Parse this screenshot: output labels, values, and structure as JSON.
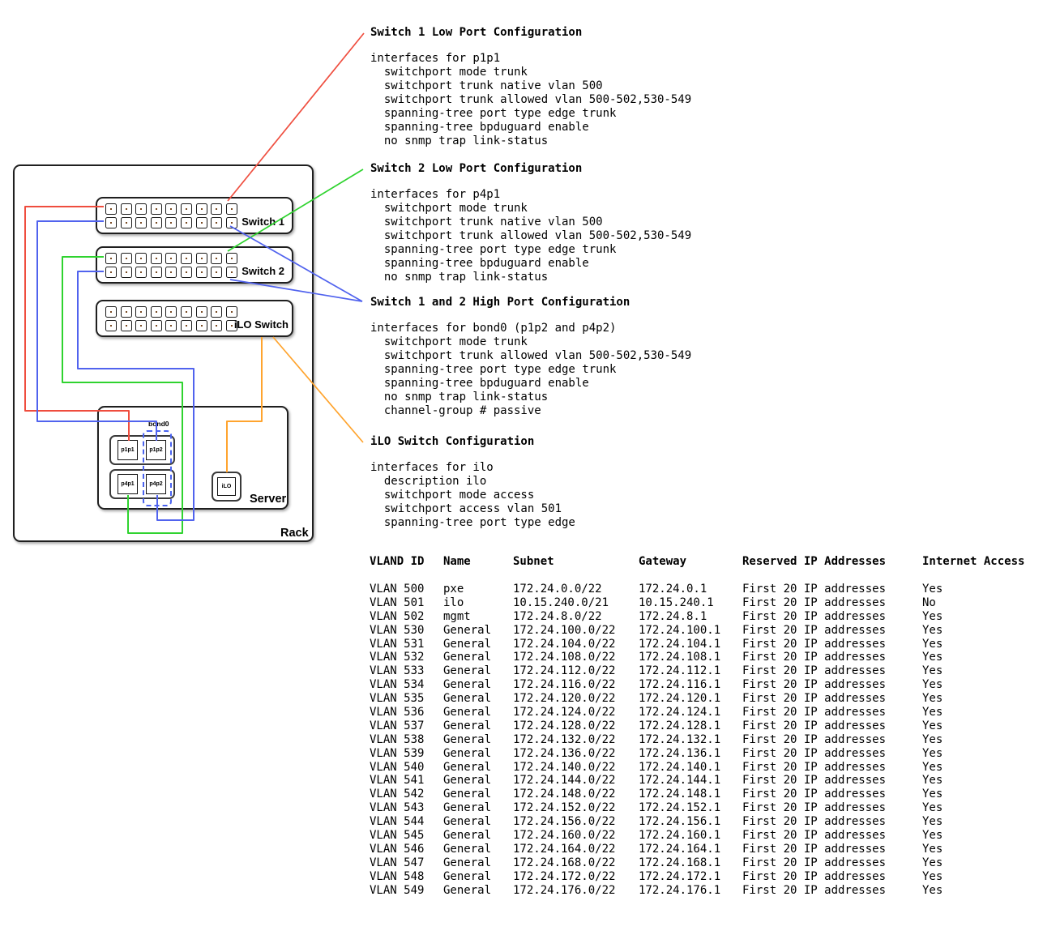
{
  "colors": {
    "wire_red": "#ef4d3e",
    "wire_green": "#2fd32f",
    "wire_blue": "#5163ee",
    "wire_orange": "#ffa42e"
  },
  "diagram": {
    "rack_label": "Rack",
    "server_label": "Server",
    "bond_label": "bond0",
    "switch1": {
      "label": "Switch 1",
      "ports_per_row": 9
    },
    "switch2": {
      "label": "Switch 2",
      "ports_per_row": 9
    },
    "ilo_switch": {
      "label": "iLO Switch",
      "ports_per_row": 9
    },
    "nics": {
      "p1p1": "p1p1",
      "p1p2": "p1p2",
      "p4p1": "p4p1",
      "p4p2": "p4p2",
      "ilo": "iLO"
    }
  },
  "config_blocks": [
    {
      "title": "Switch 1 Low Port Configuration",
      "body": "interfaces for p1p1\n  switchport mode trunk\n  switchport trunk native vlan 500\n  switchport trunk allowed vlan 500-502,530-549\n  spanning-tree port type edge trunk\n  spanning-tree bpduguard enable\n  no snmp trap link-status"
    },
    {
      "title": "Switch 2 Low Port Configuration",
      "body": "interfaces for p4p1\n  switchport mode trunk\n  switchport trunk native vlan 500\n  switchport trunk allowed vlan 500-502,530-549\n  spanning-tree port type edge trunk\n  spanning-tree bpduguard enable\n  no snmp trap link-status"
    },
    {
      "title": "Switch 1 and 2 High Port Configuration",
      "body": "interfaces for bond0 (p1p2 and p4p2)\n  switchport mode trunk\n  switchport trunk allowed vlan 500-502,530-549\n  spanning-tree port type edge trunk\n  spanning-tree bpduguard enable\n  no snmp trap link-status\n  channel-group # passive"
    },
    {
      "title": "iLO Switch Configuration",
      "body": "interfaces for ilo\n  description ilo\n  switchport mode access\n  switchport access vlan 501\n  spanning-tree port type edge"
    }
  ],
  "vlan_table": {
    "headers": [
      "VLAND ID",
      "Name",
      "Subnet",
      "Gateway",
      "Reserved IP Addresses",
      "Internet Access"
    ],
    "rows": [
      [
        "VLAN 500",
        "pxe",
        "172.24.0.0/22",
        "172.24.0.1",
        "First 20 IP addresses",
        "Yes"
      ],
      [
        "VLAN 501",
        "ilo",
        "10.15.240.0/21",
        "10.15.240.1",
        "First 20 IP addresses",
        "No"
      ],
      [
        "VLAN 502",
        "mgmt",
        "172.24.8.0/22",
        "172.24.8.1",
        "First 20 IP addresses",
        "Yes"
      ],
      [
        "VLAN 530",
        "General",
        "172.24.100.0/22",
        "172.24.100.1",
        "First 20 IP addresses",
        "Yes"
      ],
      [
        "VLAN 531",
        "General",
        "172.24.104.0/22",
        "172.24.104.1",
        "First 20 IP addresses",
        "Yes"
      ],
      [
        "VLAN 532",
        "General",
        "172.24.108.0/22",
        "172.24.108.1",
        "First 20 IP addresses",
        "Yes"
      ],
      [
        "VLAN 533",
        "General",
        "172.24.112.0/22",
        "172.24.112.1",
        "First 20 IP addresses",
        "Yes"
      ],
      [
        "VLAN 534",
        "General",
        "172.24.116.0/22",
        "172.24.116.1",
        "First 20 IP addresses",
        "Yes"
      ],
      [
        "VLAN 535",
        "General",
        "172.24.120.0/22",
        "172.24.120.1",
        "First 20 IP addresses",
        "Yes"
      ],
      [
        "VLAN 536",
        "General",
        "172.24.124.0/22",
        "172.24.124.1",
        "First 20 IP addresses",
        "Yes"
      ],
      [
        "VLAN 537",
        "General",
        "172.24.128.0/22",
        "172.24.128.1",
        "First 20 IP addresses",
        "Yes"
      ],
      [
        "VLAN 538",
        "General",
        "172.24.132.0/22",
        "172.24.132.1",
        "First 20 IP addresses",
        "Yes"
      ],
      [
        "VLAN 539",
        "General",
        "172.24.136.0/22",
        "172.24.136.1",
        "First 20 IP addresses",
        "Yes"
      ],
      [
        "VLAN 540",
        "General",
        "172.24.140.0/22",
        "172.24.140.1",
        "First 20 IP addresses",
        "Yes"
      ],
      [
        "VLAN 541",
        "General",
        "172.24.144.0/22",
        "172.24.144.1",
        "First 20 IP addresses",
        "Yes"
      ],
      [
        "VLAN 542",
        "General",
        "172.24.148.0/22",
        "172.24.148.1",
        "First 20 IP addresses",
        "Yes"
      ],
      [
        "VLAN 543",
        "General",
        "172.24.152.0/22",
        "172.24.152.1",
        "First 20 IP addresses",
        "Yes"
      ],
      [
        "VLAN 544",
        "General",
        "172.24.156.0/22",
        "172.24.156.1",
        "First 20 IP addresses",
        "Yes"
      ],
      [
        "VLAN 545",
        "General",
        "172.24.160.0/22",
        "172.24.160.1",
        "First 20 IP addresses",
        "Yes"
      ],
      [
        "VLAN 546",
        "General",
        "172.24.164.0/22",
        "172.24.164.1",
        "First 20 IP addresses",
        "Yes"
      ],
      [
        "VLAN 547",
        "General",
        "172.24.168.0/22",
        "172.24.168.1",
        "First 20 IP addresses",
        "Yes"
      ],
      [
        "VLAN 548",
        "General",
        "172.24.172.0/22",
        "172.24.172.1",
        "First 20 IP addresses",
        "Yes"
      ],
      [
        "VLAN 549",
        "General",
        "172.24.176.0/22",
        "172.24.176.1",
        "First 20 IP addresses",
        "Yes"
      ]
    ]
  }
}
